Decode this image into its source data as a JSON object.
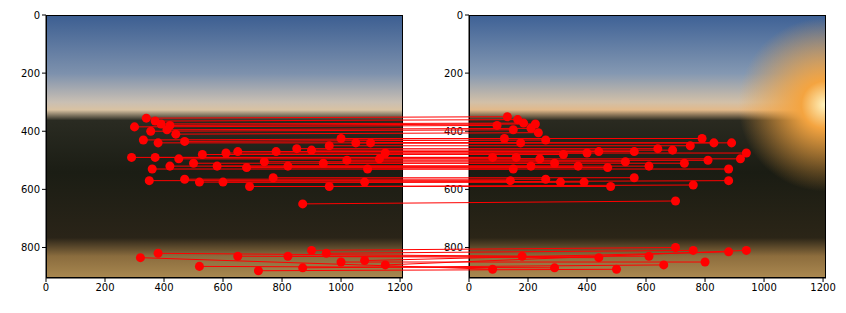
{
  "chart_data": [
    {
      "type": "scatter",
      "color": "#ff0000",
      "marker": "circle",
      "xlim": [
        0,
        1210
      ],
      "ylim": [
        0,
        905
      ],
      "xticks": [
        0,
        200,
        400,
        600,
        800,
        1000,
        1200
      ],
      "yticks": [
        0,
        200,
        400,
        600,
        800
      ],
      "x": [
        340,
        370,
        300,
        390,
        420,
        355,
        410,
        440,
        330,
        380,
        470,
        1000,
        1050,
        1100,
        960,
        850,
        290,
        370,
        450,
        530,
        610,
        650,
        780,
        900,
        1150,
        1130,
        360,
        420,
        500,
        580,
        680,
        740,
        820,
        940,
        1020,
        1090,
        350,
        470,
        520,
        600,
        690,
        770,
        960,
        1080,
        870,
        380,
        320,
        520,
        650,
        720,
        820,
        900,
        950,
        1000,
        1080,
        1150,
        870
      ],
      "values": [
        355,
        365,
        385,
        375,
        380,
        400,
        395,
        410,
        430,
        440,
        435,
        425,
        440,
        440,
        450,
        460,
        490,
        490,
        495,
        480,
        475,
        470,
        470,
        465,
        475,
        495,
        530,
        520,
        510,
        520,
        525,
        505,
        520,
        510,
        500,
        530,
        570,
        565,
        575,
        575,
        590,
        560,
        590,
        575,
        650,
        820,
        835,
        865,
        830,
        880,
        830,
        810,
        820,
        850,
        845,
        860,
        870
      ]
    },
    {
      "type": "scatter",
      "color": "#ff0000",
      "marker": "circle",
      "xlim": [
        0,
        1210
      ],
      "ylim": [
        0,
        905
      ],
      "xticks": [
        0,
        200,
        400,
        600,
        800,
        1000,
        1200
      ],
      "yticks": [
        0,
        200,
        400,
        600,
        800
      ],
      "x": [
        130,
        165,
        95,
        185,
        225,
        150,
        210,
        235,
        120,
        175,
        260,
        790,
        830,
        890,
        750,
        640,
        80,
        160,
        240,
        320,
        400,
        440,
        560,
        690,
        940,
        920,
        150,
        210,
        290,
        370,
        470,
        530,
        610,
        730,
        810,
        880,
        140,
        260,
        310,
        390,
        480,
        560,
        760,
        880,
        700,
        180,
        80,
        290,
        440,
        500,
        610,
        700,
        760,
        800,
        880,
        940,
        660
      ],
      "values": [
        350,
        360,
        380,
        372,
        375,
        395,
        390,
        405,
        425,
        440,
        430,
        425,
        440,
        440,
        450,
        460,
        490,
        490,
        495,
        480,
        475,
        470,
        470,
        465,
        475,
        495,
        530,
        520,
        510,
        520,
        525,
        505,
        520,
        510,
        500,
        530,
        570,
        565,
        575,
        575,
        590,
        560,
        585,
        570,
        640,
        830,
        875,
        870,
        835,
        875,
        830,
        800,
        810,
        850,
        815,
        810,
        860
      ]
    }
  ]
}
